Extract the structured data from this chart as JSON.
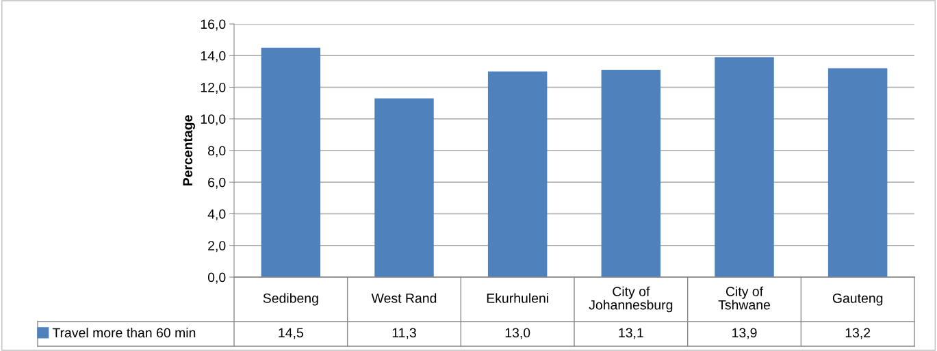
{
  "chart_data": {
    "type": "bar",
    "ylabel": "Percentage",
    "categories": [
      "Sedibeng",
      "West Rand",
      "Ekurhuleni",
      "City of Johannesburg",
      "City of Tshwane",
      "Gauteng"
    ],
    "series": [
      {
        "name": "Travel more than 60 min",
        "color": "#4f81bd",
        "values": [
          14.5,
          11.3,
          13.0,
          13.1,
          13.9,
          13.2
        ],
        "value_labels": [
          "14,5",
          "11,3",
          "13,0",
          "13,1",
          "13,9",
          "13,2"
        ]
      }
    ],
    "ylim": [
      0,
      16
    ],
    "yticks": [
      {
        "value": 0,
        "label": "0,0"
      },
      {
        "value": 2,
        "label": "2,0"
      },
      {
        "value": 4,
        "label": "4,0"
      },
      {
        "value": 6,
        "label": "6,0"
      },
      {
        "value": 8,
        "label": "8,0"
      },
      {
        "value": 10,
        "label": "10,0"
      },
      {
        "value": 12,
        "label": "12,0"
      },
      {
        "value": 14,
        "label": "14,0"
      },
      {
        "value": 16,
        "label": "16,0"
      }
    ],
    "grid": "y",
    "legend": "bottom left"
  }
}
